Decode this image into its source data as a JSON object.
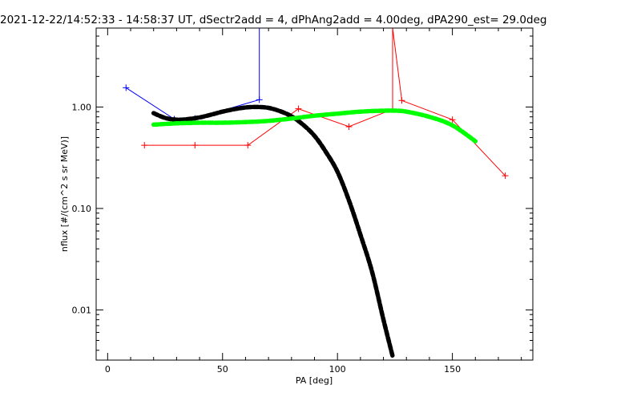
{
  "chart_data": {
    "type": "line",
    "title": "2021-12-22/14:52:33 - 14:58:37 UT, dSectr2add = 4, dPhAng2add = 4.00deg, dPA290_est=  29.0deg",
    "xlabel": "PA [deg]",
    "ylabel": "nflux [#/(cm^2 s sr MeV)]",
    "xlim": [
      -5,
      185
    ],
    "ylim": [
      0.0032,
      6.0
    ],
    "yscale": "log",
    "grid": false,
    "xticks": [
      {
        "value": 0,
        "label": "0"
      },
      {
        "value": 50,
        "label": "50"
      },
      {
        "value": 100,
        "label": "100"
      },
      {
        "value": 150,
        "label": "150"
      }
    ],
    "yticks": [
      {
        "value": 0.01,
        "label": "0.01"
      },
      {
        "value": 0.1,
        "label": "0.10"
      },
      {
        "value": 1.0,
        "label": "1.00"
      }
    ],
    "series": [
      {
        "color": "#0000ff",
        "style": "line-plus",
        "x": [
          8,
          29,
          38,
          66,
          66
        ],
        "y": [
          1.55,
          0.76,
          0.77,
          1.18,
          6.0
        ]
      },
      {
        "color": "#ff0000",
        "style": "line-plus",
        "x": [
          16,
          38,
          61,
          83,
          105,
          124,
          124,
          128,
          150,
          173
        ],
        "y": [
          0.42,
          0.42,
          0.42,
          0.96,
          0.64,
          0.95,
          6.0,
          1.16,
          0.75,
          0.21
        ]
      },
      {
        "color": "#000000",
        "style": "thick-dashed",
        "x": [
          20,
          25,
          30,
          35,
          40,
          45,
          50,
          55,
          60,
          65,
          70,
          75,
          80,
          85,
          90,
          95,
          100,
          105,
          110,
          115,
          120,
          124
        ],
        "y": [
          0.87,
          0.78,
          0.75,
          0.76,
          0.79,
          0.84,
          0.9,
          0.95,
          0.99,
          1.0,
          0.98,
          0.91,
          0.81,
          0.67,
          0.52,
          0.36,
          0.23,
          0.12,
          0.055,
          0.024,
          0.008,
          0.0035
        ]
      },
      {
        "color": "#00ff00",
        "style": "thick-dashed",
        "x": [
          20,
          30,
          40,
          50,
          60,
          70,
          80,
          90,
          100,
          110,
          120,
          125,
          130,
          140,
          150,
          160
        ],
        "y": [
          0.67,
          0.69,
          0.7,
          0.7,
          0.71,
          0.73,
          0.77,
          0.82,
          0.86,
          0.9,
          0.92,
          0.92,
          0.9,
          0.8,
          0.66,
          0.46
        ]
      }
    ]
  }
}
